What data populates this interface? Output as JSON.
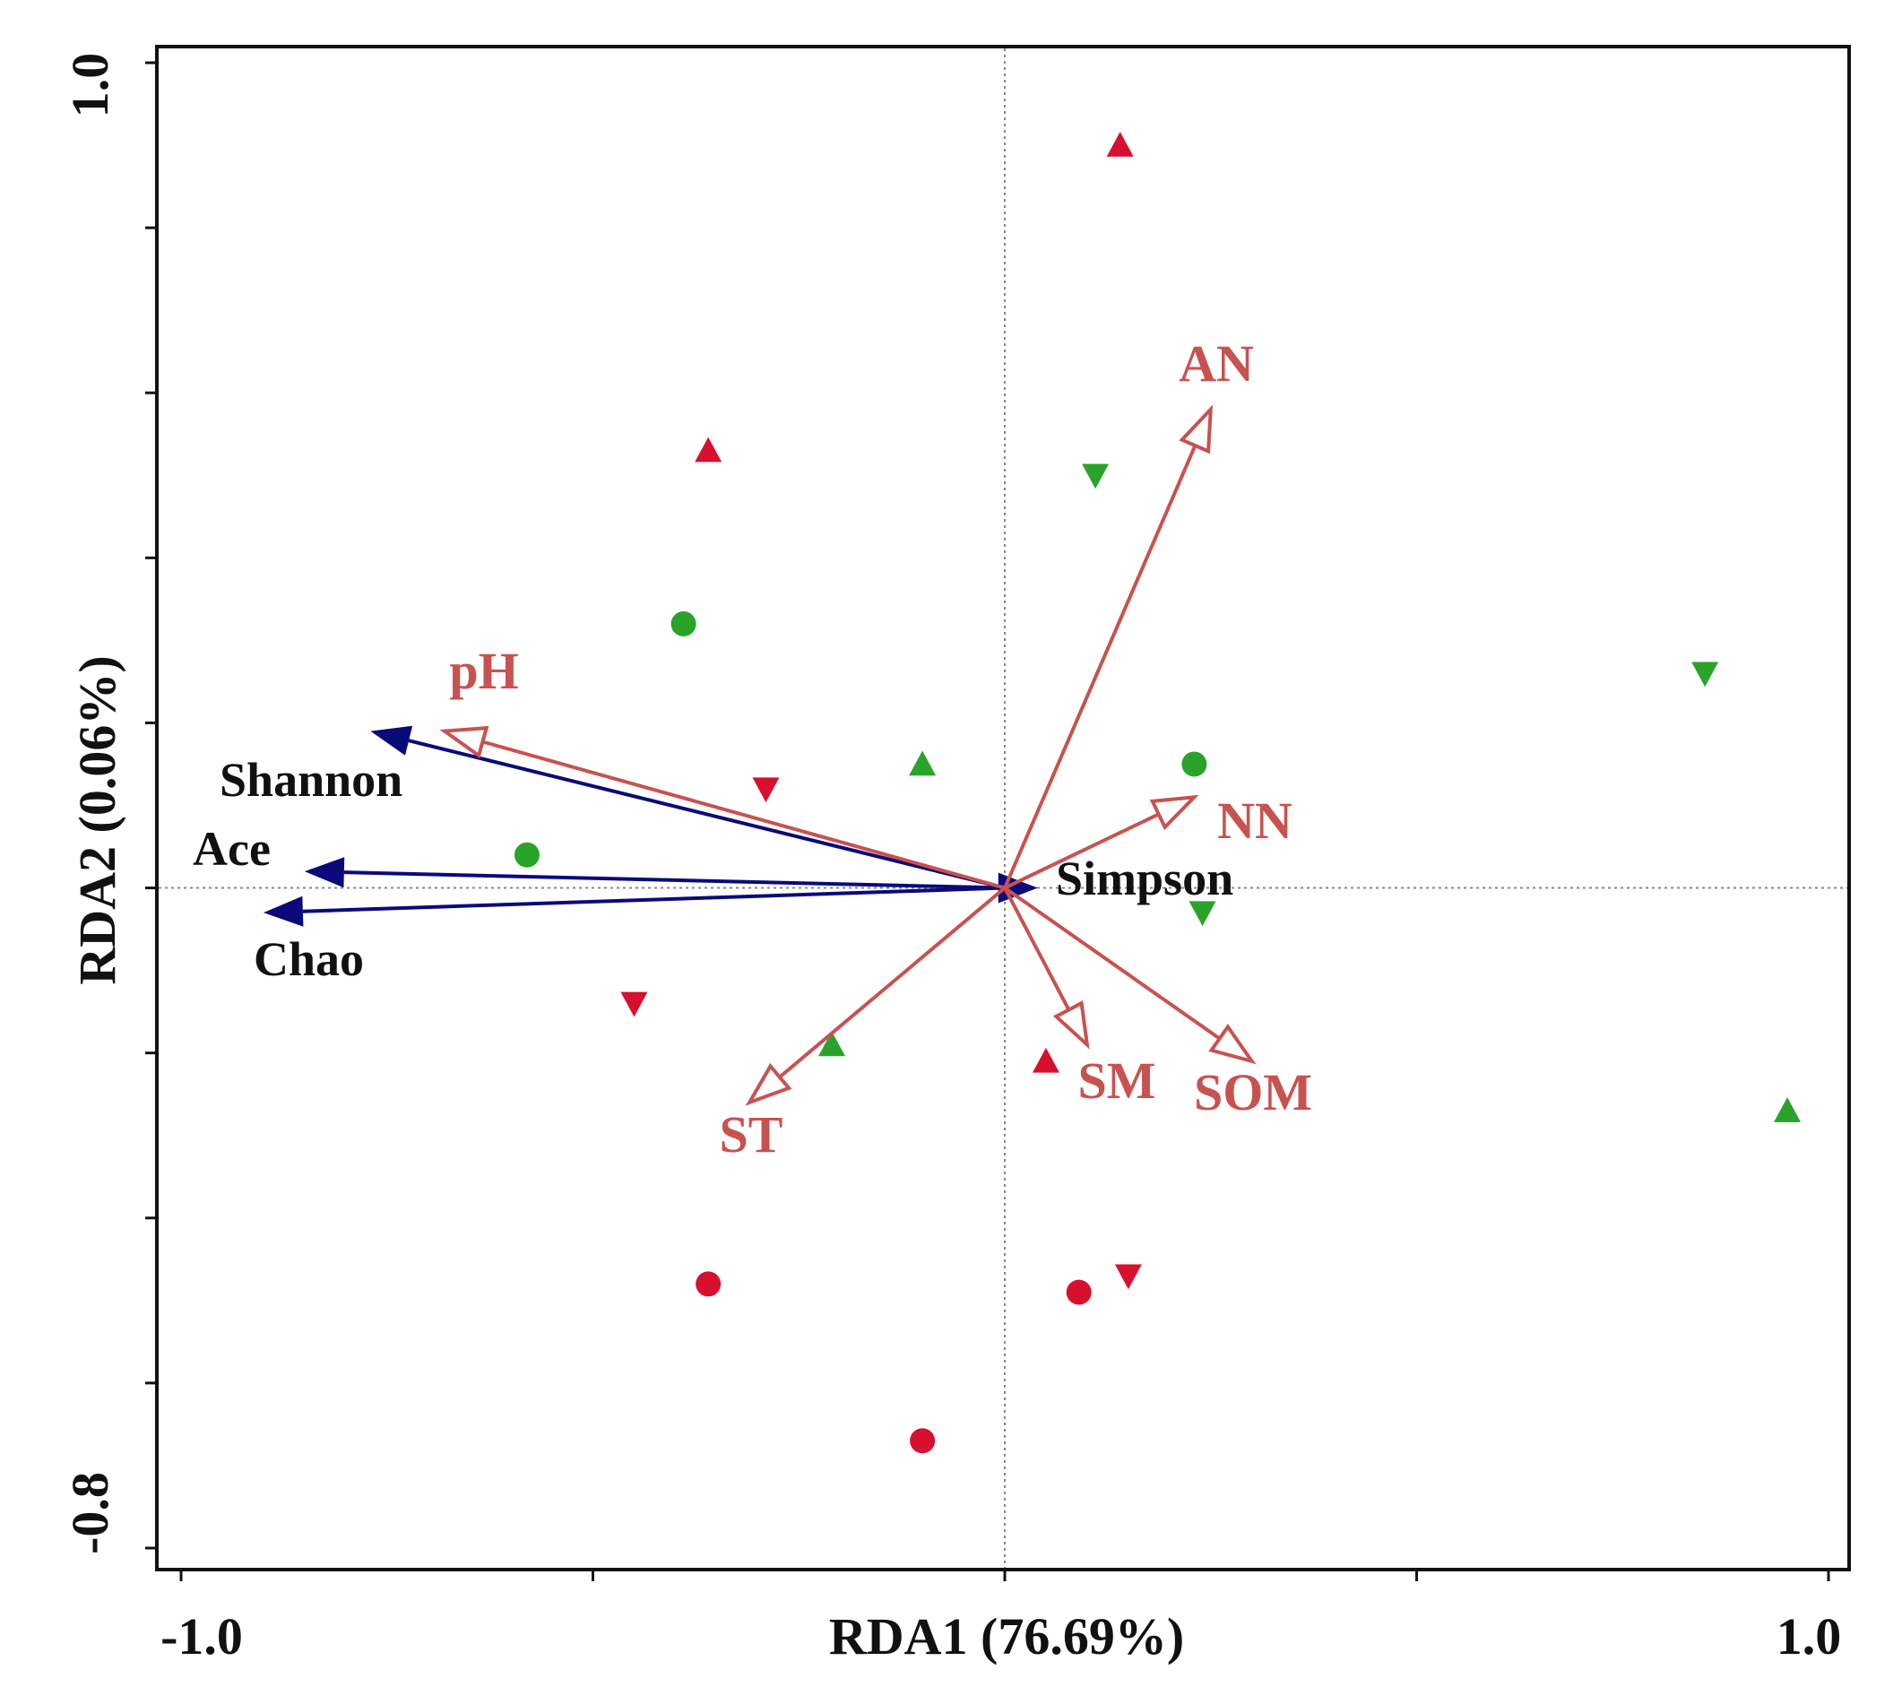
{
  "chart_data": {
    "type": "scatter",
    "subtype": "rda-biplot",
    "xlabel": "RDA1 (76.69%)",
    "ylabel": "RDA2 (0.06%)",
    "xlim": [
      -1.0,
      1.0
    ],
    "ylim": [
      -0.8,
      1.0
    ],
    "x_tick_labels": [
      {
        "value": -1.0,
        "label": "-1.0"
      },
      {
        "value": 1.0,
        "label": "1.0"
      }
    ],
    "y_tick_labels": [
      {
        "value": 1.0,
        "label": "1.0"
      },
      {
        "value": -0.8,
        "label": "-0.8"
      }
    ],
    "x_ticks": [
      -1.0,
      -0.5,
      0.0,
      0.5,
      1.0
    ],
    "y_ticks": [
      1.0,
      0.8,
      0.6,
      0.4,
      0.2,
      0.0,
      -0.2,
      -0.4,
      -0.6,
      -0.8
    ],
    "reference_lines": {
      "x": 0.0,
      "y": 0.0,
      "style": "dotted"
    },
    "colors": {
      "red": "#d6102e",
      "green": "#2aa32a",
      "env_arrow": "#c8524f",
      "resp_arrow": "#0a0a7a"
    },
    "environmental_vectors": [
      {
        "name": "AN",
        "x": 0.25,
        "y": 0.58
      },
      {
        "name": "NN",
        "x": 0.23,
        "y": 0.11
      },
      {
        "name": "pH",
        "x": -0.68,
        "y": 0.19
      },
      {
        "name": "ST",
        "x": -0.31,
        "y": -0.26
      },
      {
        "name": "SM",
        "x": 0.1,
        "y": -0.19
      },
      {
        "name": "SOM",
        "x": 0.3,
        "y": -0.21
      }
    ],
    "response_vectors": [
      {
        "name": "Shannon",
        "x": -0.77,
        "y": 0.19
      },
      {
        "name": "Ace",
        "x": -0.85,
        "y": 0.02
      },
      {
        "name": "Chao",
        "x": -0.9,
        "y": -0.03
      },
      {
        "name": "Simpson",
        "x": 0.04,
        "y": 0.0
      }
    ],
    "samples": [
      {
        "x": 0.14,
        "y": 0.9,
        "shape": "triangle-up",
        "color": "red"
      },
      {
        "x": -0.36,
        "y": 0.53,
        "shape": "triangle-up",
        "color": "red"
      },
      {
        "x": 0.05,
        "y": -0.21,
        "shape": "triangle-up",
        "color": "red"
      },
      {
        "x": -0.29,
        "y": 0.12,
        "shape": "triangle-down",
        "color": "red"
      },
      {
        "x": -0.45,
        "y": -0.14,
        "shape": "triangle-down",
        "color": "red"
      },
      {
        "x": 0.15,
        "y": -0.47,
        "shape": "triangle-down",
        "color": "red"
      },
      {
        "x": -0.36,
        "y": -0.48,
        "shape": "circle",
        "color": "red"
      },
      {
        "x": 0.09,
        "y": -0.49,
        "shape": "circle",
        "color": "red"
      },
      {
        "x": -0.1,
        "y": -0.67,
        "shape": "circle",
        "color": "red"
      },
      {
        "x": 0.11,
        "y": 0.5,
        "shape": "triangle-down",
        "color": "green"
      },
      {
        "x": 0.85,
        "y": 0.26,
        "shape": "triangle-down",
        "color": "green"
      },
      {
        "x": 0.24,
        "y": -0.03,
        "shape": "triangle-down",
        "color": "green"
      },
      {
        "x": -0.1,
        "y": 0.15,
        "shape": "triangle-up",
        "color": "green"
      },
      {
        "x": -0.21,
        "y": -0.19,
        "shape": "triangle-up",
        "color": "green"
      },
      {
        "x": 0.95,
        "y": -0.27,
        "shape": "triangle-up",
        "color": "green"
      },
      {
        "x": -0.39,
        "y": 0.32,
        "shape": "circle",
        "color": "green"
      },
      {
        "x": 0.23,
        "y": 0.15,
        "shape": "circle",
        "color": "green"
      },
      {
        "x": -0.58,
        "y": 0.04,
        "shape": "circle",
        "color": "green"
      }
    ]
  }
}
